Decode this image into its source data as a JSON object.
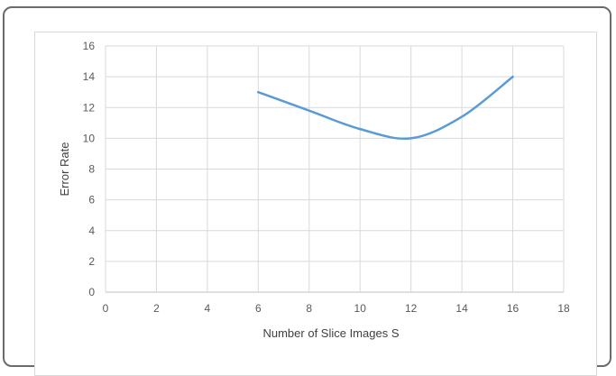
{
  "chart_data": {
    "type": "line",
    "xlabel": "Number of Slice Images S",
    "ylabel": "Error Rate",
    "xlim": [
      0,
      18
    ],
    "ylim": [
      0,
      16
    ],
    "x_ticks": [
      0,
      2,
      4,
      6,
      8,
      10,
      12,
      14,
      16,
      18
    ],
    "y_ticks": [
      0,
      2,
      4,
      6,
      8,
      10,
      12,
      14,
      16
    ],
    "grid": true,
    "legend": "none",
    "series": [
      {
        "color": "#5b9bd5",
        "x": [
          6,
          8,
          10,
          12,
          14,
          16
        ],
        "y": [
          13,
          11.8,
          10.6,
          10.0,
          11.4,
          14
        ]
      }
    ]
  }
}
